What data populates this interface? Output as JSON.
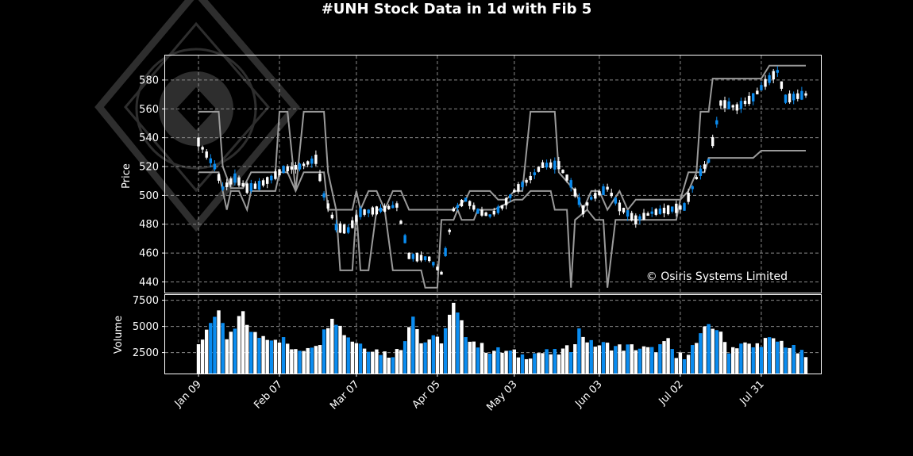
{
  "chart_data": {
    "type": "candlestick",
    "title": "#UNH Stock Data in 1d with Fib 5",
    "watermark": "© Osiris Systems Limited",
    "colors": {
      "up": "#ffffff",
      "down": "#0a8cf0",
      "fib_line": "#9a9a9a",
      "grid": "#8a8a8a",
      "background": "#000000"
    },
    "grid": true,
    "price_panel": {
      "ylabel": "Price",
      "ylim": [
        432,
        597
      ],
      "yticks": [
        440,
        460,
        480,
        500,
        520,
        540,
        560,
        580
      ]
    },
    "volume_panel": {
      "ylabel": "Volume",
      "ylim": [
        500,
        8000
      ],
      "yticks": [
        2500,
        5000,
        7500
      ],
      "ytick_labels": [
        "2500",
        "5000",
        "7500"
      ]
    },
    "xticks": [
      {
        "label": "Jan 09",
        "index": 0
      },
      {
        "label": "Feb 07",
        "index": 20
      },
      {
        "label": "Mar 07",
        "index": 39
      },
      {
        "label": "Apr 05",
        "index": 59
      },
      {
        "label": "May 03",
        "index": 78
      },
      {
        "label": "Jun 03",
        "index": 99
      },
      {
        "label": "Jul 02",
        "index": 119
      },
      {
        "label": "Jul 31",
        "index": 139
      }
    ],
    "price_knots": [
      [
        0,
        537
      ],
      [
        3,
        524
      ],
      [
        4,
        520
      ],
      [
        6,
        505
      ],
      [
        9,
        512
      ],
      [
        12,
        505
      ],
      [
        15,
        507
      ],
      [
        18,
        512
      ],
      [
        21,
        518
      ],
      [
        25,
        520
      ],
      [
        29,
        525
      ],
      [
        31,
        500
      ],
      [
        34,
        478
      ],
      [
        37,
        476
      ],
      [
        40,
        488
      ],
      [
        45,
        490
      ],
      [
        49,
        493
      ],
      [
        52,
        458
      ],
      [
        57,
        456
      ],
      [
        60,
        446
      ],
      [
        63,
        490
      ],
      [
        66,
        497
      ],
      [
        69,
        489
      ],
      [
        72,
        486
      ],
      [
        75,
        492
      ],
      [
        78,
        503
      ],
      [
        82,
        512
      ],
      [
        85,
        521
      ],
      [
        89,
        521
      ],
      [
        92,
        508
      ],
      [
        95,
        490
      ],
      [
        97,
        498
      ],
      [
        101,
        505
      ],
      [
        104,
        492
      ],
      [
        108,
        483
      ],
      [
        112,
        488
      ],
      [
        116,
        490
      ],
      [
        120,
        492
      ],
      [
        123,
        512
      ],
      [
        126,
        524
      ],
      [
        129,
        564
      ],
      [
        133,
        561
      ],
      [
        137,
        568
      ],
      [
        140,
        578
      ],
      [
        143,
        586
      ],
      [
        145,
        567
      ],
      [
        150,
        570
      ]
    ],
    "volume_knots": [
      [
        0,
        3100
      ],
      [
        3,
        5600
      ],
      [
        5,
        6100
      ],
      [
        7,
        3800
      ],
      [
        9,
        4700
      ],
      [
        11,
        6500
      ],
      [
        13,
        4300
      ],
      [
        15,
        4100
      ],
      [
        18,
        4000
      ],
      [
        21,
        3700
      ],
      [
        24,
        2500
      ],
      [
        27,
        3100
      ],
      [
        30,
        3600
      ],
      [
        33,
        6100
      ],
      [
        36,
        4400
      ],
      [
        38,
        3700
      ],
      [
        42,
        3000
      ],
      [
        47,
        2300
      ],
      [
        50,
        2800
      ],
      [
        53,
        6300
      ],
      [
        55,
        3400
      ],
      [
        57,
        3800
      ],
      [
        60,
        3700
      ],
      [
        63,
        7000
      ],
      [
        66,
        4300
      ],
      [
        69,
        3200
      ],
      [
        72,
        2700
      ],
      [
        76,
        2600
      ],
      [
        80,
        2200
      ],
      [
        84,
        2500
      ],
      [
        88,
        2400
      ],
      [
        92,
        2900
      ],
      [
        94,
        4600
      ],
      [
        97,
        3300
      ],
      [
        101,
        3200
      ],
      [
        104,
        3000
      ],
      [
        108,
        3000
      ],
      [
        112,
        2700
      ],
      [
        116,
        3500
      ],
      [
        118,
        2000
      ],
      [
        120,
        2300
      ],
      [
        123,
        3400
      ],
      [
        126,
        5200
      ],
      [
        128,
        4800
      ],
      [
        131,
        2800
      ],
      [
        134,
        3400
      ],
      [
        137,
        3000
      ],
      [
        140,
        3700
      ],
      [
        144,
        3500
      ],
      [
        147,
        2800
      ],
      [
        150,
        2100
      ]
    ],
    "down_days": [
      3,
      4,
      6,
      9,
      13,
      15,
      18,
      21,
      25,
      28,
      31,
      34,
      37,
      40,
      42,
      45,
      48,
      51,
      53,
      56,
      58,
      61,
      64,
      66,
      69,
      72,
      74,
      77,
      80,
      83,
      86,
      88,
      92,
      94,
      97,
      100,
      103,
      106,
      109,
      112,
      114,
      117,
      120,
      122,
      124,
      126,
      128,
      131,
      134,
      137,
      139,
      141,
      143,
      145,
      147,
      149
    ],
    "fib_levels": [
      436,
      448,
      483,
      490,
      497,
      503,
      516,
      531,
      558,
      581,
      590
    ],
    "fib_upper": [
      [
        0,
        558
      ],
      [
        5,
        558
      ],
      [
        6,
        520
      ],
      [
        8,
        505
      ],
      [
        11,
        505
      ],
      [
        13,
        516
      ],
      [
        15,
        516
      ],
      [
        18,
        516
      ],
      [
        19,
        516
      ],
      [
        20,
        558
      ],
      [
        22,
        558
      ],
      [
        24,
        503
      ],
      [
        26,
        558
      ],
      [
        31,
        558
      ],
      [
        32,
        516
      ],
      [
        34,
        490
      ],
      [
        38,
        490
      ],
      [
        39,
        503
      ],
      [
        40,
        490
      ],
      [
        42,
        503
      ],
      [
        44,
        503
      ],
      [
        46,
        490
      ],
      [
        48,
        503
      ],
      [
        50,
        503
      ],
      [
        52,
        490
      ],
      [
        63,
        490
      ],
      [
        66,
        497
      ],
      [
        67,
        503
      ],
      [
        72,
        503
      ],
      [
        74,
        497
      ],
      [
        76,
        497
      ],
      [
        78,
        503
      ],
      [
        80,
        503
      ],
      [
        82,
        558
      ],
      [
        88,
        558
      ],
      [
        89,
        516
      ],
      [
        93,
        503
      ],
      [
        95,
        490
      ],
      [
        97,
        503
      ],
      [
        99,
        503
      ],
      [
        101,
        490
      ],
      [
        104,
        503
      ],
      [
        106,
        490
      ],
      [
        108,
        497
      ],
      [
        119,
        497
      ],
      [
        121,
        516
      ],
      [
        123,
        516
      ],
      [
        124,
        558
      ],
      [
        126,
        558
      ],
      [
        127,
        581
      ],
      [
        139,
        581
      ],
      [
        141,
        590
      ],
      [
        150,
        590
      ]
    ],
    "fib_lower": [
      [
        0,
        516
      ],
      [
        5,
        516
      ],
      [
        6,
        503
      ],
      [
        7,
        490
      ],
      [
        8,
        503
      ],
      [
        10,
        503
      ],
      [
        12,
        490
      ],
      [
        13,
        503
      ],
      [
        15,
        503
      ],
      [
        19,
        503
      ],
      [
        20,
        516
      ],
      [
        22,
        516
      ],
      [
        24,
        503
      ],
      [
        26,
        516
      ],
      [
        31,
        516
      ],
      [
        32,
        490
      ],
      [
        34,
        490
      ],
      [
        35,
        448
      ],
      [
        38,
        448
      ],
      [
        39,
        490
      ],
      [
        40,
        448
      ],
      [
        42,
        448
      ],
      [
        44,
        490
      ],
      [
        46,
        490
      ],
      [
        48,
        448
      ],
      [
        52,
        448
      ],
      [
        55,
        448
      ],
      [
        56,
        436
      ],
      [
        59,
        436
      ],
      [
        60,
        483
      ],
      [
        63,
        483
      ],
      [
        64,
        490
      ],
      [
        65,
        483
      ],
      [
        68,
        483
      ],
      [
        69,
        490
      ],
      [
        73,
        490
      ],
      [
        78,
        497
      ],
      [
        80,
        497
      ],
      [
        82,
        503
      ],
      [
        87,
        503
      ],
      [
        88,
        490
      ],
      [
        91,
        490
      ],
      [
        92,
        436
      ],
      [
        93,
        483
      ],
      [
        96,
        490
      ],
      [
        98,
        483
      ],
      [
        100,
        483
      ],
      [
        101,
        436
      ],
      [
        103,
        483
      ],
      [
        118,
        483
      ],
      [
        119,
        497
      ],
      [
        121,
        503
      ],
      [
        123,
        516
      ],
      [
        125,
        516
      ],
      [
        126,
        526
      ],
      [
        131,
        526
      ],
      [
        137,
        526
      ],
      [
        139,
        531
      ],
      [
        150,
        531
      ]
    ]
  }
}
